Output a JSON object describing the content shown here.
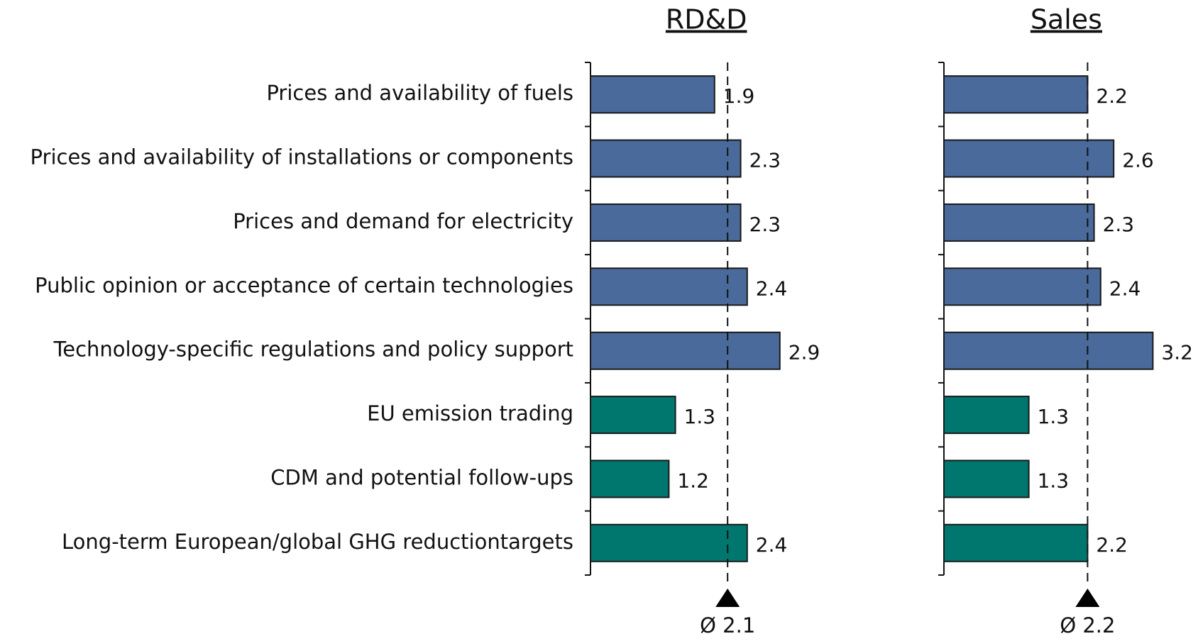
{
  "chart_data": {
    "type": "bar",
    "orientation": "horizontal",
    "categories": [
      "Prices and availability of fuels",
      "Prices and availability of installations or components",
      "Prices and demand for electricity",
      "Public opinion or acceptance of certain technologies",
      "Technology-specific regulations and policy support",
      "EU emission trading",
      "CDM and potential follow-ups",
      "Long-term European/global GHG reductiontargets"
    ],
    "colors": [
      "#4a6a9b",
      "#4a6a9b",
      "#4a6a9b",
      "#4a6a9b",
      "#4a6a9b",
      "#00776e",
      "#00776e",
      "#00776e"
    ],
    "panels": [
      {
        "title": "RD&D",
        "xlim": [
          0,
          4
        ],
        "values": [
          1.9,
          2.3,
          2.3,
          2.4,
          2.9,
          1.3,
          1.2,
          2.4
        ],
        "mean": {
          "value": 2.1,
          "label": "Ø 2.1"
        }
      },
      {
        "title": "Sales",
        "xlim": [
          0,
          4
        ],
        "values": [
          2.2,
          2.6,
          2.3,
          2.4,
          3.2,
          1.3,
          1.3,
          2.2
        ],
        "mean": {
          "value": 2.2,
          "label": "Ø 2.2"
        }
      }
    ]
  }
}
